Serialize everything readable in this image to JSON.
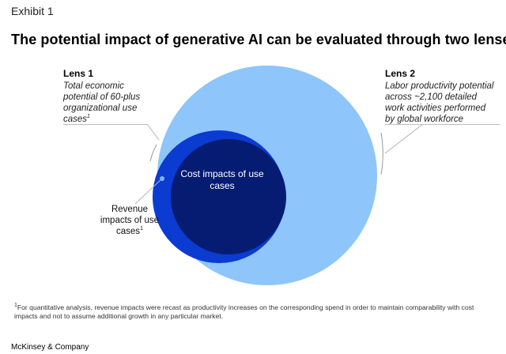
{
  "header": {
    "exhibit": "Exhibit 1",
    "title": "The potential impact of generative AI can be evaluated through two lenses."
  },
  "lens1": {
    "heading": "Lens 1",
    "description": "Total economic potential of 60-plus organizational use cases",
    "footnote_marker": "1"
  },
  "lens2": {
    "heading": "Lens 2",
    "description": "Labor productivity potential across ~2,100 detailed work activities performed by global workforce"
  },
  "circles": {
    "cost_label": "Cost impacts of use cases",
    "revenue_label": "Revenue impacts of use cases",
    "revenue_marker": "1"
  },
  "colors": {
    "large_circle": "#8ec5fa",
    "revenue_crescent": "#0b3bd0",
    "cost_circle": "#061c73",
    "marker_dot": "#7fb8f5"
  },
  "footnote": {
    "marker": "1",
    "text": "For quantitative analysis, revenue impacts were recast as productivity increases on the corresponding spend in order to maintain comparability with cost impacts and not to assume additional growth in any particular market."
  },
  "brand": "McKinsey & Company"
}
